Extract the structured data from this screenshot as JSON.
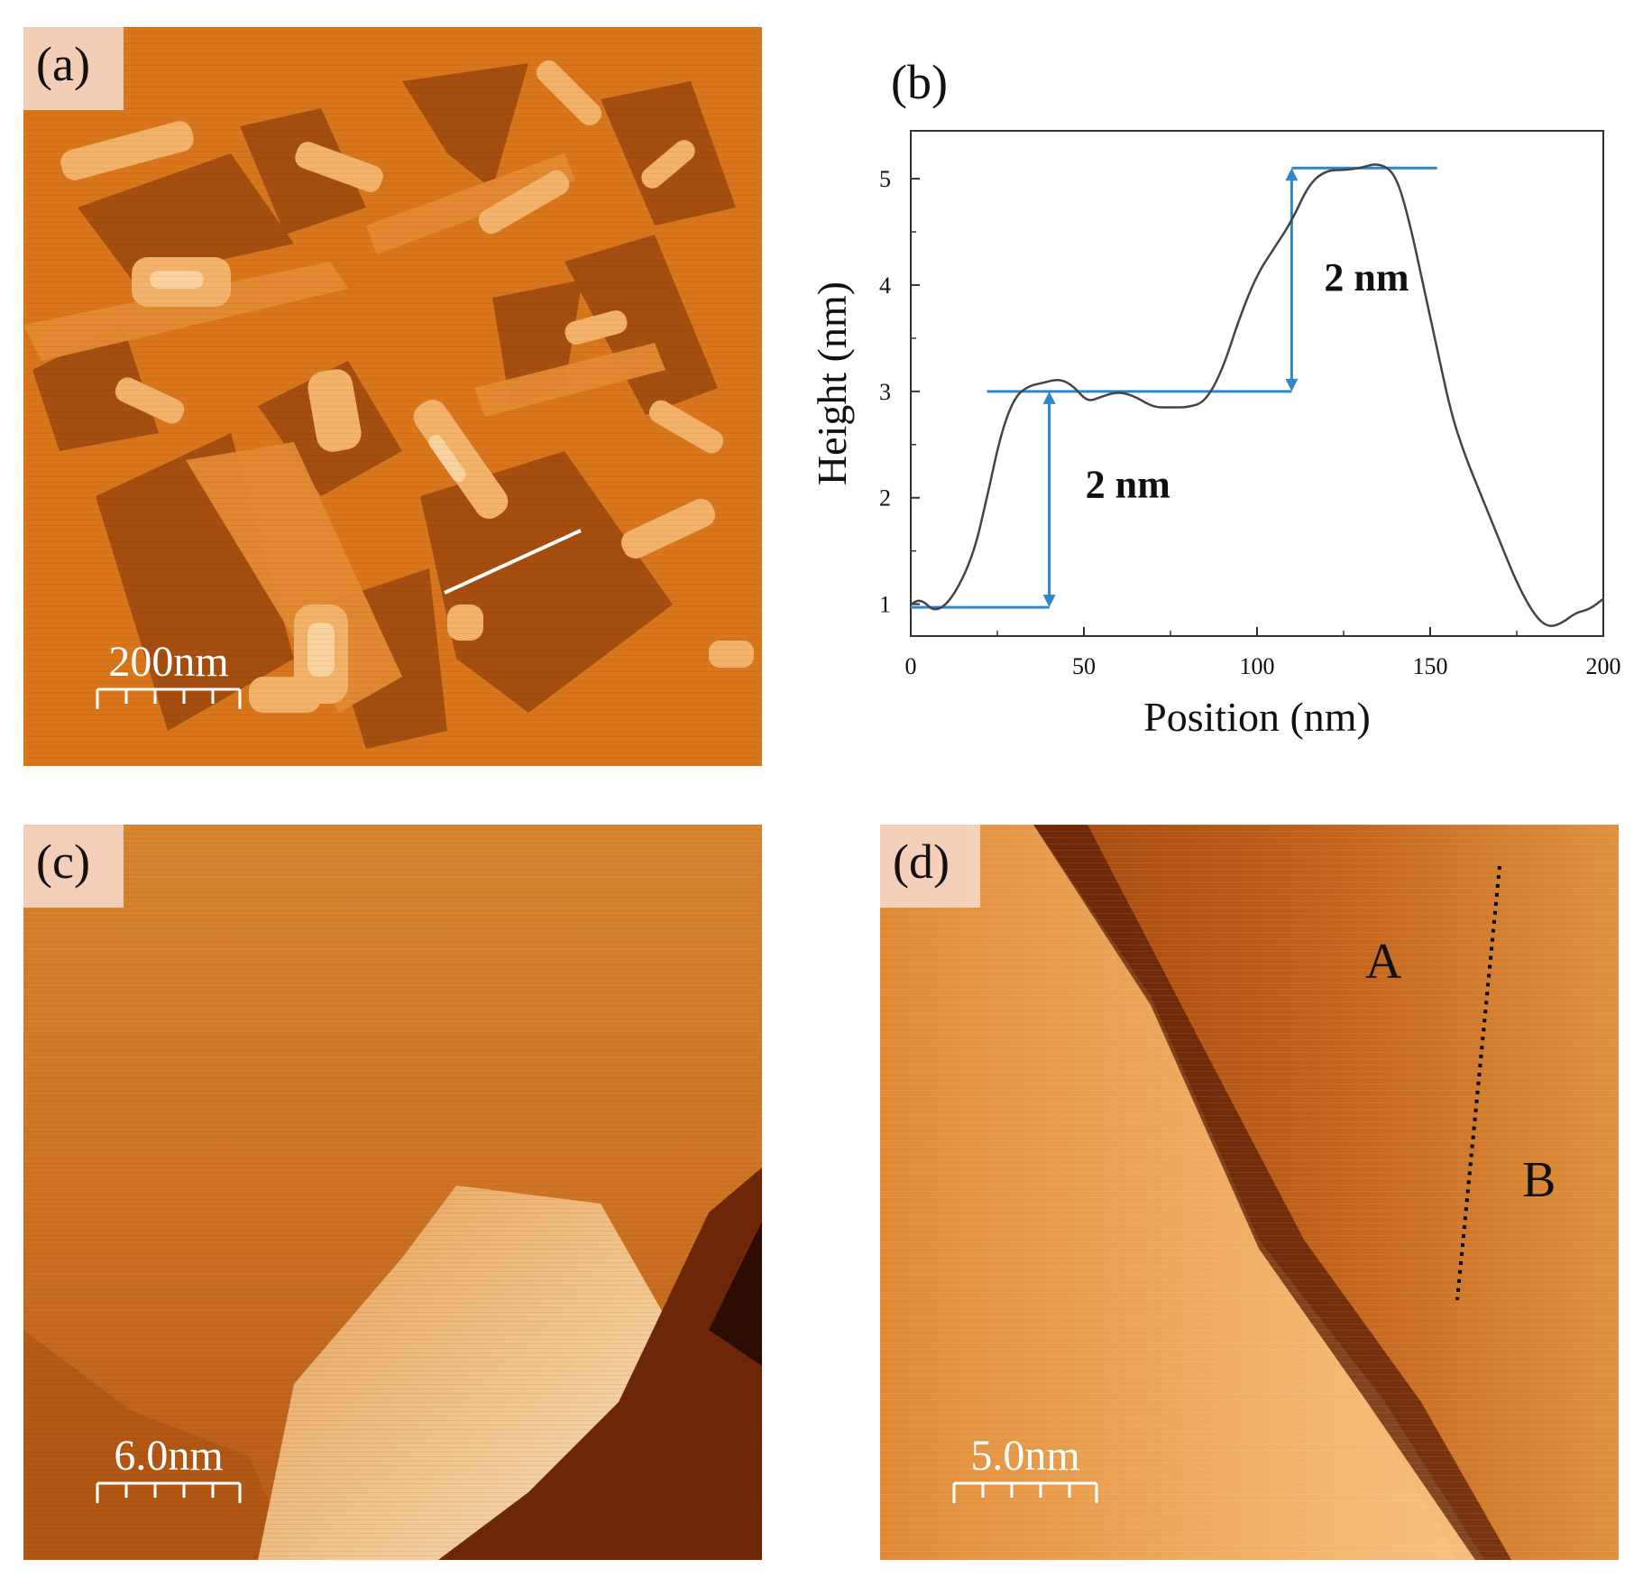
{
  "panels": {
    "a": {
      "tag": "(a)",
      "scale_bar": "200nm"
    },
    "b": {
      "tag": "(b)"
    },
    "c": {
      "tag": "(c)",
      "scale_bar": "6.0nm"
    },
    "d": {
      "tag": "(d)",
      "scale_bar": "5.0nm",
      "region_a": "A",
      "region_b": "B"
    }
  },
  "chart_data": {
    "type": "line",
    "xlabel": "Position (nm)",
    "ylabel": "Height (nm)",
    "xlim": [
      0,
      200
    ],
    "ylim": [
      0.7,
      5.45
    ],
    "xticks": [
      0,
      50,
      100,
      150,
      200
    ],
    "yticks": [
      1,
      2,
      3,
      4,
      5
    ],
    "series": [
      {
        "x": [
          0,
          3,
          7,
          12,
          18,
          22,
          26,
          30,
          34,
          38,
          43,
          47,
          51,
          55,
          60,
          65,
          70,
          75,
          80,
          85,
          90,
          95,
          100,
          105,
          110,
          115,
          120,
          125,
          130,
          135,
          140,
          144,
          148,
          152,
          156,
          160,
          165,
          170,
          175,
          180,
          184,
          188,
          192,
          196,
          200
        ],
        "y": [
          1.0,
          1.05,
          0.92,
          1.05,
          1.45,
          2.0,
          2.6,
          2.95,
          3.05,
          3.08,
          3.12,
          3.05,
          2.9,
          2.95,
          3.0,
          2.95,
          2.85,
          2.85,
          2.85,
          2.9,
          3.2,
          3.7,
          4.1,
          4.35,
          4.6,
          4.95,
          5.08,
          5.08,
          5.1,
          5.15,
          5.05,
          4.6,
          4.0,
          3.4,
          2.8,
          2.4,
          2.0,
          1.6,
          1.2,
          0.9,
          0.78,
          0.82,
          0.92,
          0.95,
          1.05
        ]
      }
    ],
    "annotations": [
      {
        "text": "2 nm",
        "from": [
          40,
          0.97
        ],
        "to": [
          40,
          3.0
        ]
      },
      {
        "text": "2 nm",
        "from": [
          110,
          3.0
        ],
        "to": [
          110,
          5.1
        ]
      }
    ]
  }
}
